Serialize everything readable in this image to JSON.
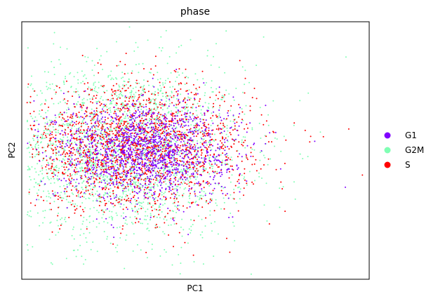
{
  "chart_data": {
    "type": "scatter",
    "title": "phase",
    "xlabel": "PC1",
    "ylabel": "PC2",
    "xticks": [],
    "yticks": [],
    "xlim": [
      -4.2,
      6.0
    ],
    "ylim": [
      -4.2,
      4.2
    ],
    "grid": false,
    "legend_position": "right",
    "series": [
      {
        "name": "G2M",
        "color": "#80ffb4",
        "cloud": {
          "n": 2300,
          "cx": -1.2,
          "cy": 0.0,
          "sx": 1.8,
          "sy": 1.4,
          "points": [
            [
              -0.5,
              3.6
            ],
            [
              1.8,
              3.9
            ],
            [
              2.9,
              3.7
            ],
            [
              -3.2,
              0.6
            ],
            [
              -3.4,
              -1.4
            ],
            [
              -1.4,
              -3.3
            ],
            [
              0.4,
              -3.4
            ],
            [
              3.0,
              -2.3
            ],
            [
              2.8,
              1.4
            ]
          ]
        }
      },
      {
        "name": "S",
        "color": "#ff0000",
        "cloud": {
          "n": 1800,
          "cx": -0.9,
          "cy": 0.1,
          "sx": 1.7,
          "sy": 1.0,
          "points": [
            [
              -0.6,
              2.0
            ],
            [
              1.6,
              1.9
            ],
            [
              -3.2,
              0.5
            ],
            [
              5.4,
              0.7
            ],
            [
              5.8,
              -0.8
            ],
            [
              1.2,
              -2.2
            ],
            [
              -0.8,
              -2.0
            ],
            [
              3.8,
              0.9
            ]
          ]
        }
      },
      {
        "name": "G1",
        "color": "#8000ff",
        "cloud": {
          "n": 1500,
          "cx": -0.6,
          "cy": 0.0,
          "sx": 1.3,
          "sy": 0.8,
          "points": [
            [
              -1.2,
              0.1
            ],
            [
              -0.9,
              0.0
            ],
            [
              -1.0,
              0.2
            ],
            [
              -0.8,
              -0.2
            ],
            [
              2.5,
              0.9
            ],
            [
              3.4,
              -0.6
            ],
            [
              5.3,
              -1.2
            ],
            [
              4.4,
              0.3
            ]
          ]
        }
      }
    ]
  }
}
